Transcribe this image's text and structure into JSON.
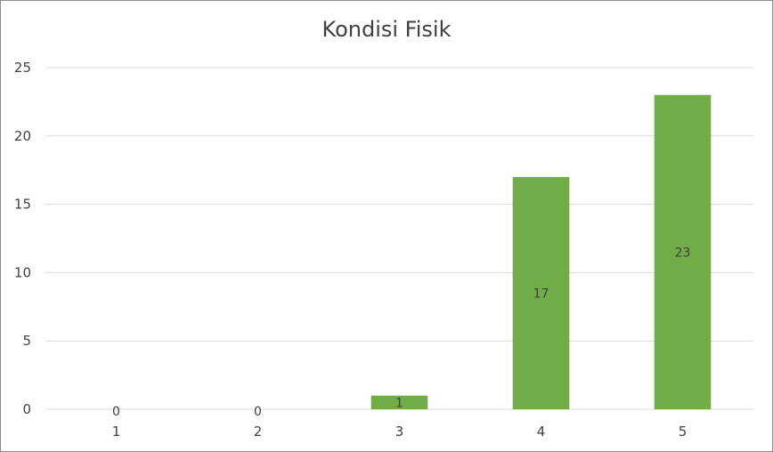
{
  "chart_data": {
    "type": "bar",
    "title": "Kondisi Fisik",
    "categories": [
      "1",
      "2",
      "3",
      "4",
      "5"
    ],
    "values": [
      0,
      0,
      1,
      17,
      23
    ],
    "xlabel": "",
    "ylabel": "",
    "ylim": [
      0,
      25
    ],
    "yticks": [
      "0",
      "5",
      "10",
      "15",
      "20",
      "25"
    ],
    "grid": true,
    "legend": "none",
    "bar_color": "#70AD47",
    "grid_color": "#d9d9d9",
    "text_color": "#404040"
  }
}
